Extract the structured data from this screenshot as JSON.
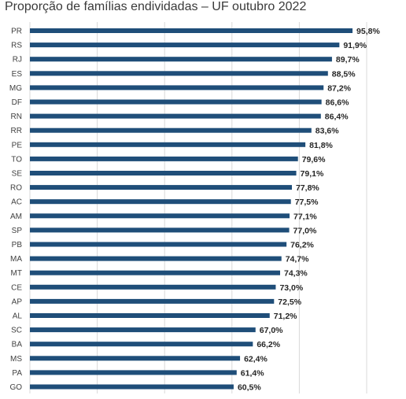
{
  "chart_data": {
    "type": "bar",
    "orientation": "horizontal",
    "title": "Proporção de famílias endividadas – UF outubro 2022",
    "categories": [
      "PR",
      "RS",
      "RJ",
      "ES",
      "MG",
      "DF",
      "RN",
      "RR",
      "PE",
      "TO",
      "SE",
      "RO",
      "AC",
      "AM",
      "SP",
      "PB",
      "MA",
      "MT",
      "CE",
      "AP",
      "AL",
      "SC",
      "BA",
      "MS",
      "PA",
      "GO"
    ],
    "values": [
      95.8,
      91.9,
      89.7,
      88.5,
      87.2,
      86.6,
      86.4,
      83.6,
      81.8,
      79.6,
      79.1,
      77.8,
      77.5,
      77.1,
      77.0,
      76.2,
      74.7,
      74.3,
      73.0,
      72.5,
      71.2,
      67.0,
      66.2,
      62.4,
      61.4,
      60.5
    ],
    "value_labels": [
      "95,8%",
      "91,9%",
      "89,7%",
      "88,5%",
      "87,2%",
      "86,6%",
      "86,4%",
      "83,6%",
      "81,8%",
      "79,6%",
      "79,1%",
      "77,8%",
      "77,5%",
      "77,1%",
      "77,0%",
      "76,2%",
      "74,7%",
      "74,3%",
      "73,0%",
      "72,5%",
      "71,2%",
      "67,0%",
      "66,2%",
      "62,4%",
      "61,4%",
      "60,5%"
    ],
    "xlim": [
      0,
      100
    ],
    "grid": true,
    "legend": false,
    "bar_color": "#1f4e79",
    "grid_color": "#d9d9d9"
  }
}
